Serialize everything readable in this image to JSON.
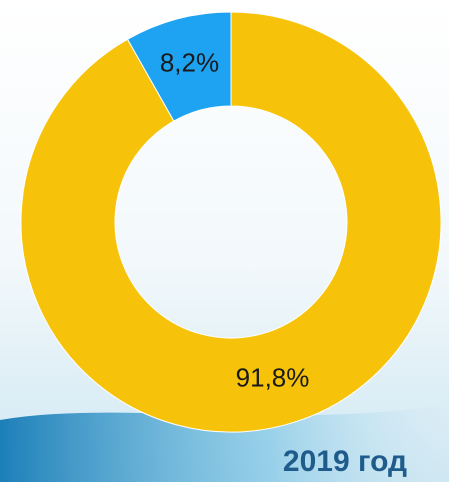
{
  "chart_data": {
    "type": "donut",
    "title": "2019 год",
    "values": [
      91.8,
      8.2
    ],
    "value_labels": [
      "91,8%",
      "8,2%"
    ],
    "colors": [
      "#f7c20a",
      "#1ea3f2"
    ]
  }
}
